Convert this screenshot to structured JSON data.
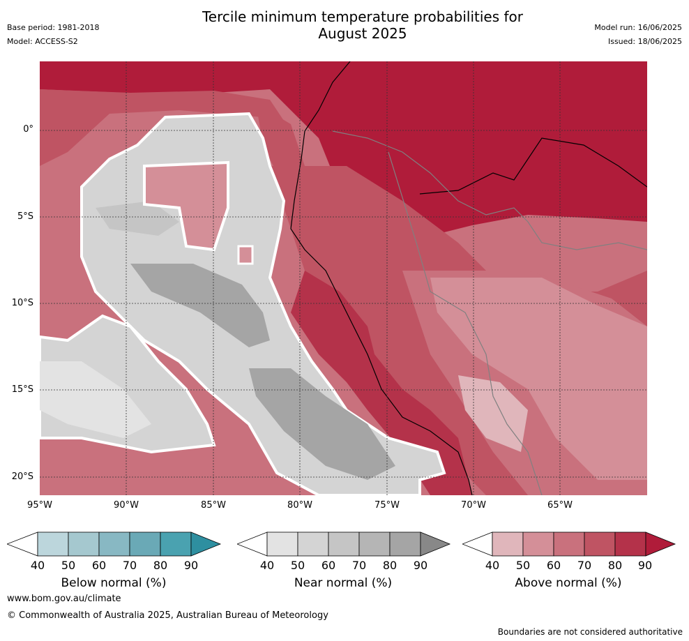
{
  "title": "Tercile minimum temperature probabilities for\nAugust 2025",
  "meta_left": {
    "base_period": "Base period: 1981-2018",
    "model": "Model: ACCESS-S2"
  },
  "meta_right": {
    "model_run": "Model run: 16/06/2025",
    "issued": "Issued: 18/06/2025"
  },
  "lat_labels": [
    "0°",
    "5°S",
    "10°S",
    "15°S",
    "20°S"
  ],
  "lon_labels": [
    "95°W",
    "90°W",
    "85°W",
    "80°W",
    "75°W",
    "70°W",
    "65°W"
  ],
  "colorbars": [
    {
      "title": "Below normal (%)",
      "ticks": [
        "40",
        "50",
        "60",
        "70",
        "80",
        "90"
      ],
      "colors": [
        "#ffffff",
        "#bcd6dc",
        "#a5c8cf",
        "#88b8c3",
        "#6aa9b6",
        "#4aa2b0",
        "#2e8fa0"
      ]
    },
    {
      "title": "Near normal (%)",
      "ticks": [
        "40",
        "50",
        "60",
        "70",
        "80",
        "90"
      ],
      "colors": [
        "#ffffff",
        "#e3e3e3",
        "#d4d4d4",
        "#c5c5c5",
        "#b5b5b5",
        "#a5a5a5",
        "#888888"
      ]
    },
    {
      "title": "Above normal (%)",
      "ticks": [
        "40",
        "50",
        "60",
        "70",
        "80",
        "90"
      ],
      "colors": [
        "#ffffff",
        "#e0b6bb",
        "#d48f98",
        "#c9717d",
        "#bf5463",
        "#b4324a",
        "#b01c3a"
      ]
    }
  ],
  "footer": {
    "url": "www.bom.gov.au/climate",
    "copyright": "© Commonwealth of Australia 2025, Australian Bureau of Meteorology",
    "note": "Boundaries are not considered authoritative"
  }
}
